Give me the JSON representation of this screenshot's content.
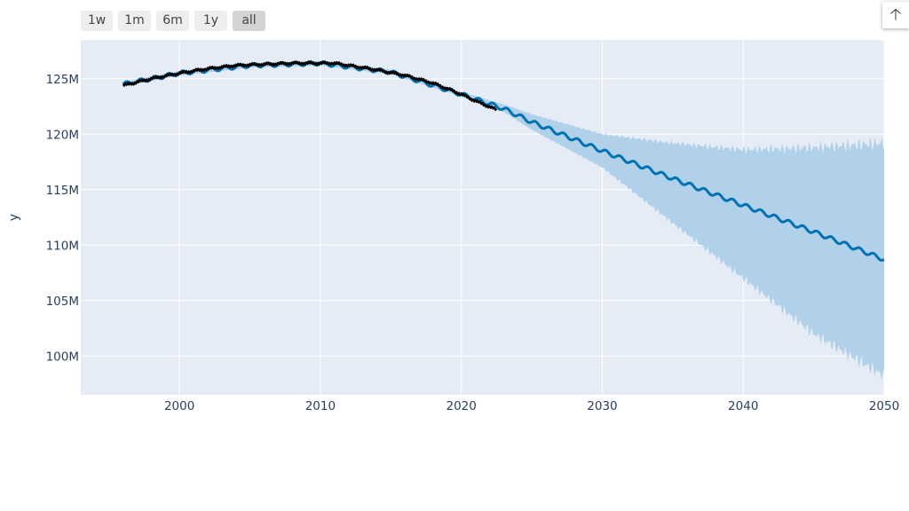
{
  "range_selector": {
    "buttons": [
      {
        "label": "1w",
        "active": false
      },
      {
        "label": "1m",
        "active": false
      },
      {
        "label": "6m",
        "active": false
      },
      {
        "label": "1y",
        "active": false
      },
      {
        "label": "all",
        "active": true
      }
    ]
  },
  "toolbar": {
    "glyph": "🡡",
    "icon": "arrow-up-icon"
  },
  "colors": {
    "plot_bg": "#e5ecf6",
    "grid": "#ffffff",
    "forecast_line": "#0072b2",
    "uncertainty_band": "#a8cde8",
    "actual_points": "#000000"
  },
  "chart_data": {
    "type": "line",
    "xlabel": "",
    "ylabel": "y",
    "xlim": [
      1993.0,
      2050.0
    ],
    "ylim": [
      96500000,
      128500000
    ],
    "x_ticks": [
      2000,
      2010,
      2020,
      2030,
      2040,
      2050
    ],
    "x_tick_labels": [
      "2000",
      "2010",
      "2020",
      "2030",
      "2040",
      "2050"
    ],
    "y_ticks": [
      100000000,
      105000000,
      110000000,
      115000000,
      120000000,
      125000000
    ],
    "y_tick_labels": [
      "100M",
      "105M",
      "110M",
      "115M",
      "120M",
      "125M"
    ],
    "grid": true,
    "legend": "none",
    "series": [
      {
        "role": "actual",
        "x": [
          1996,
          1998,
          2000,
          2002,
          2004,
          2006,
          2008,
          2010,
          2011,
          2012,
          2014,
          2016,
          2018,
          2020,
          2021,
          2022.5
        ],
        "y": [
          124400000,
          125000000,
          125500000,
          125900000,
          126200000,
          126300000,
          126400000,
          126400000,
          126400000,
          126200000,
          125800000,
          125300000,
          124600000,
          123600000,
          123000000,
          122200000
        ]
      },
      {
        "role": "forecast",
        "x": [
          1996,
          2000,
          2005,
          2010,
          2015,
          2020,
          2023,
          2025,
          2030,
          2035,
          2040,
          2045,
          2050
        ],
        "y": [
          124500000,
          125500000,
          126200000,
          126400000,
          125600000,
          123600000,
          122300000,
          121100000,
          118500000,
          116000000,
          113600000,
          111200000,
          108700000
        ]
      },
      {
        "role": "uncertainty",
        "x": [
          1996,
          2000,
          2005,
          2010,
          2015,
          2020,
          2023,
          2025,
          2030,
          2035,
          2040,
          2045,
          2050
        ],
        "upper": [
          124700000,
          125700000,
          126400000,
          126600000,
          125800000,
          123800000,
          122700000,
          121800000,
          120000000,
          119200000,
          118600000,
          118800000,
          119200000
        ],
        "lower": [
          124300000,
          125300000,
          126000000,
          126200000,
          125400000,
          123400000,
          122000000,
          120400000,
          117000000,
          112000000,
          107000000,
          102000000,
          98200000
        ]
      }
    ]
  }
}
